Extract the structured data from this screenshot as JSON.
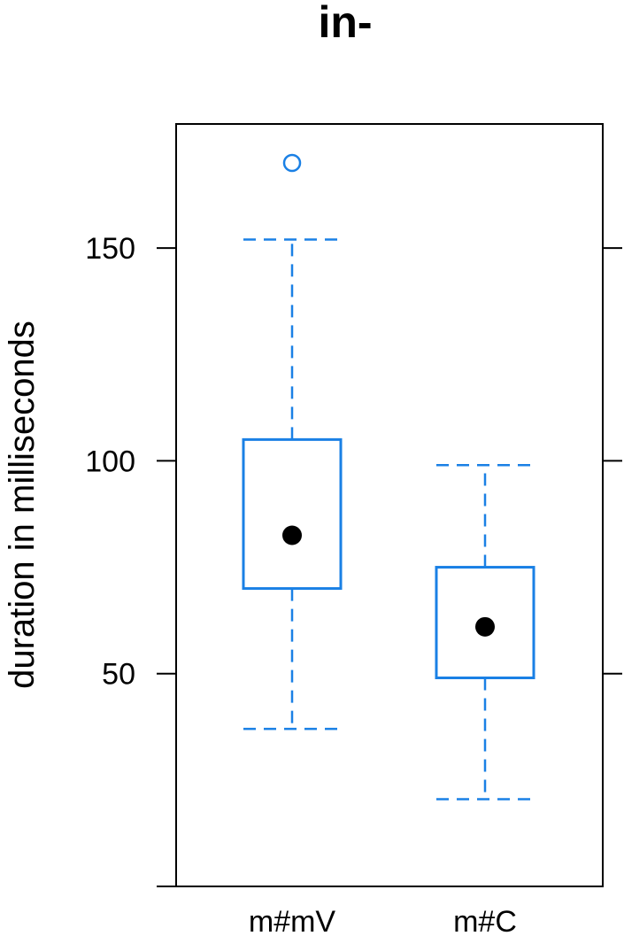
{
  "chart_data": {
    "type": "box",
    "title": "in-",
    "ylabel": "duration in milliseconds",
    "xlabel": "",
    "ylim": [
      0,
      175
    ],
    "yticks": [
      50,
      100,
      150
    ],
    "categories": [
      "m#mV",
      "m#C"
    ],
    "boxes": [
      {
        "name": "m#mV",
        "whisker_low": 37,
        "q1": 70,
        "median": 82.5,
        "q3": 105,
        "whisker_high": 152,
        "outliers": [
          170
        ]
      },
      {
        "name": "m#C",
        "whisker_low": 20.5,
        "q1": 49,
        "median": 61,
        "q3": 75,
        "whisker_high": 99,
        "outliers": []
      }
    ],
    "grid": false,
    "colors": {
      "box": "#1a80e5",
      "median_dot": "#000000",
      "frame": "#000000"
    }
  }
}
